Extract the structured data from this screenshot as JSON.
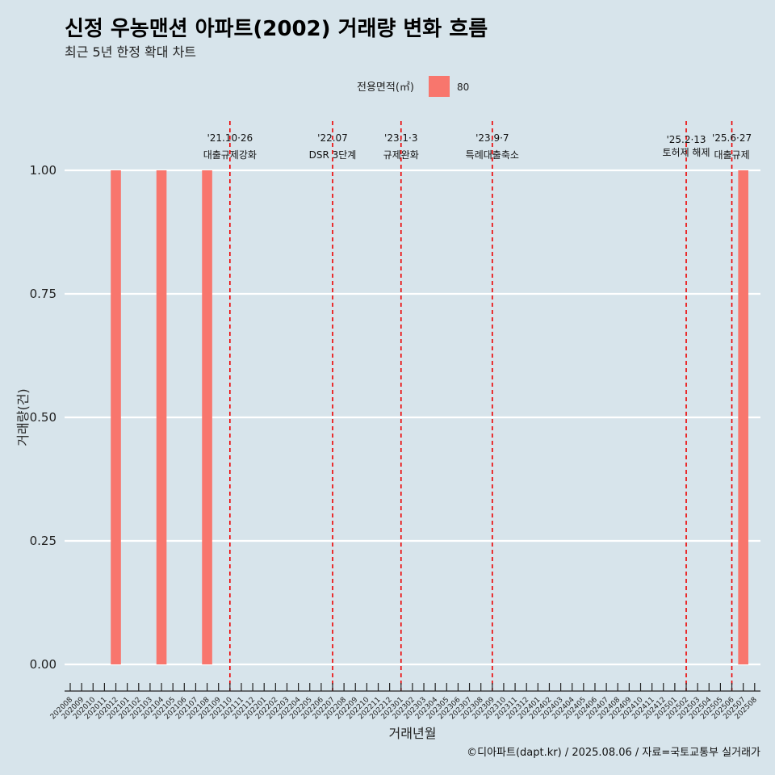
{
  "title": "신정 우농맨션 아파트(2002) 거래량 변화 흐름",
  "subtitle": "최근 5년 한정 확대 차트",
  "caption": "©디아파트(dapt.kr) / 2025.08.06 / 자료=국토교통부 실거래가",
  "colors": {
    "background": "#d7e4eb",
    "bar": "#f8766d",
    "event_line": "#ee0000",
    "grid": "#ffffff"
  },
  "chart_data": {
    "type": "bar",
    "xlabel": "거래년월",
    "ylabel": "거래량(건)",
    "ylim": [
      0,
      1
    ],
    "yticks": [
      "0.00",
      "0.25",
      "0.50",
      "0.75",
      "1.00"
    ],
    "grid": true,
    "legend": {
      "title": "전용면적(㎡)",
      "position": "top",
      "entries": [
        "80"
      ]
    },
    "categories": [
      "202008",
      "202009",
      "202010",
      "202011",
      "202012",
      "202101",
      "202102",
      "202103",
      "202104",
      "202105",
      "202106",
      "202107",
      "202108",
      "202109",
      "202110",
      "202111",
      "202112",
      "202201",
      "202202",
      "202203",
      "202204",
      "202205",
      "202206",
      "202207",
      "202208",
      "202209",
      "202210",
      "202211",
      "202212",
      "202301",
      "202302",
      "202303",
      "202304",
      "202305",
      "202306",
      "202307",
      "202308",
      "202309",
      "202310",
      "202311",
      "202312",
      "202401",
      "202402",
      "202403",
      "202404",
      "202405",
      "202406",
      "202407",
      "202408",
      "202409",
      "202410",
      "202411",
      "202412",
      "202501",
      "202502",
      "202503",
      "202504",
      "202505",
      "202506",
      "202507",
      "202508"
    ],
    "series": [
      {
        "name": "80",
        "values": [
          0,
          0,
          0,
          0,
          1,
          0,
          0,
          0,
          1,
          0,
          0,
          0,
          1,
          0,
          0,
          0,
          0,
          0,
          0,
          0,
          0,
          0,
          0,
          0,
          0,
          0,
          0,
          0,
          0,
          0,
          0,
          0,
          0,
          0,
          0,
          0,
          0,
          0,
          0,
          0,
          0,
          0,
          0,
          0,
          0,
          0,
          0,
          0,
          0,
          0,
          0,
          0,
          0,
          0,
          0,
          0,
          0,
          0,
          0,
          1,
          0
        ]
      }
    ],
    "events": [
      {
        "x": "202110",
        "line1": "'21.10·26",
        "line2": "대출규제강화"
      },
      {
        "x": "202207",
        "line1": "'22.07",
        "line2": "DSR 3단계"
      },
      {
        "x": "202301",
        "line1": "'23.1·3",
        "line2": "규제완화"
      },
      {
        "x": "202309",
        "line1": "'23.9·7",
        "line2": "특례대출축소"
      },
      {
        "x": "202502",
        "line1": "'25.2·13",
        "line2": "토허제 해제"
      },
      {
        "x": "202506",
        "line1": "'25.6·27",
        "line2": "대출규제"
      }
    ]
  }
}
